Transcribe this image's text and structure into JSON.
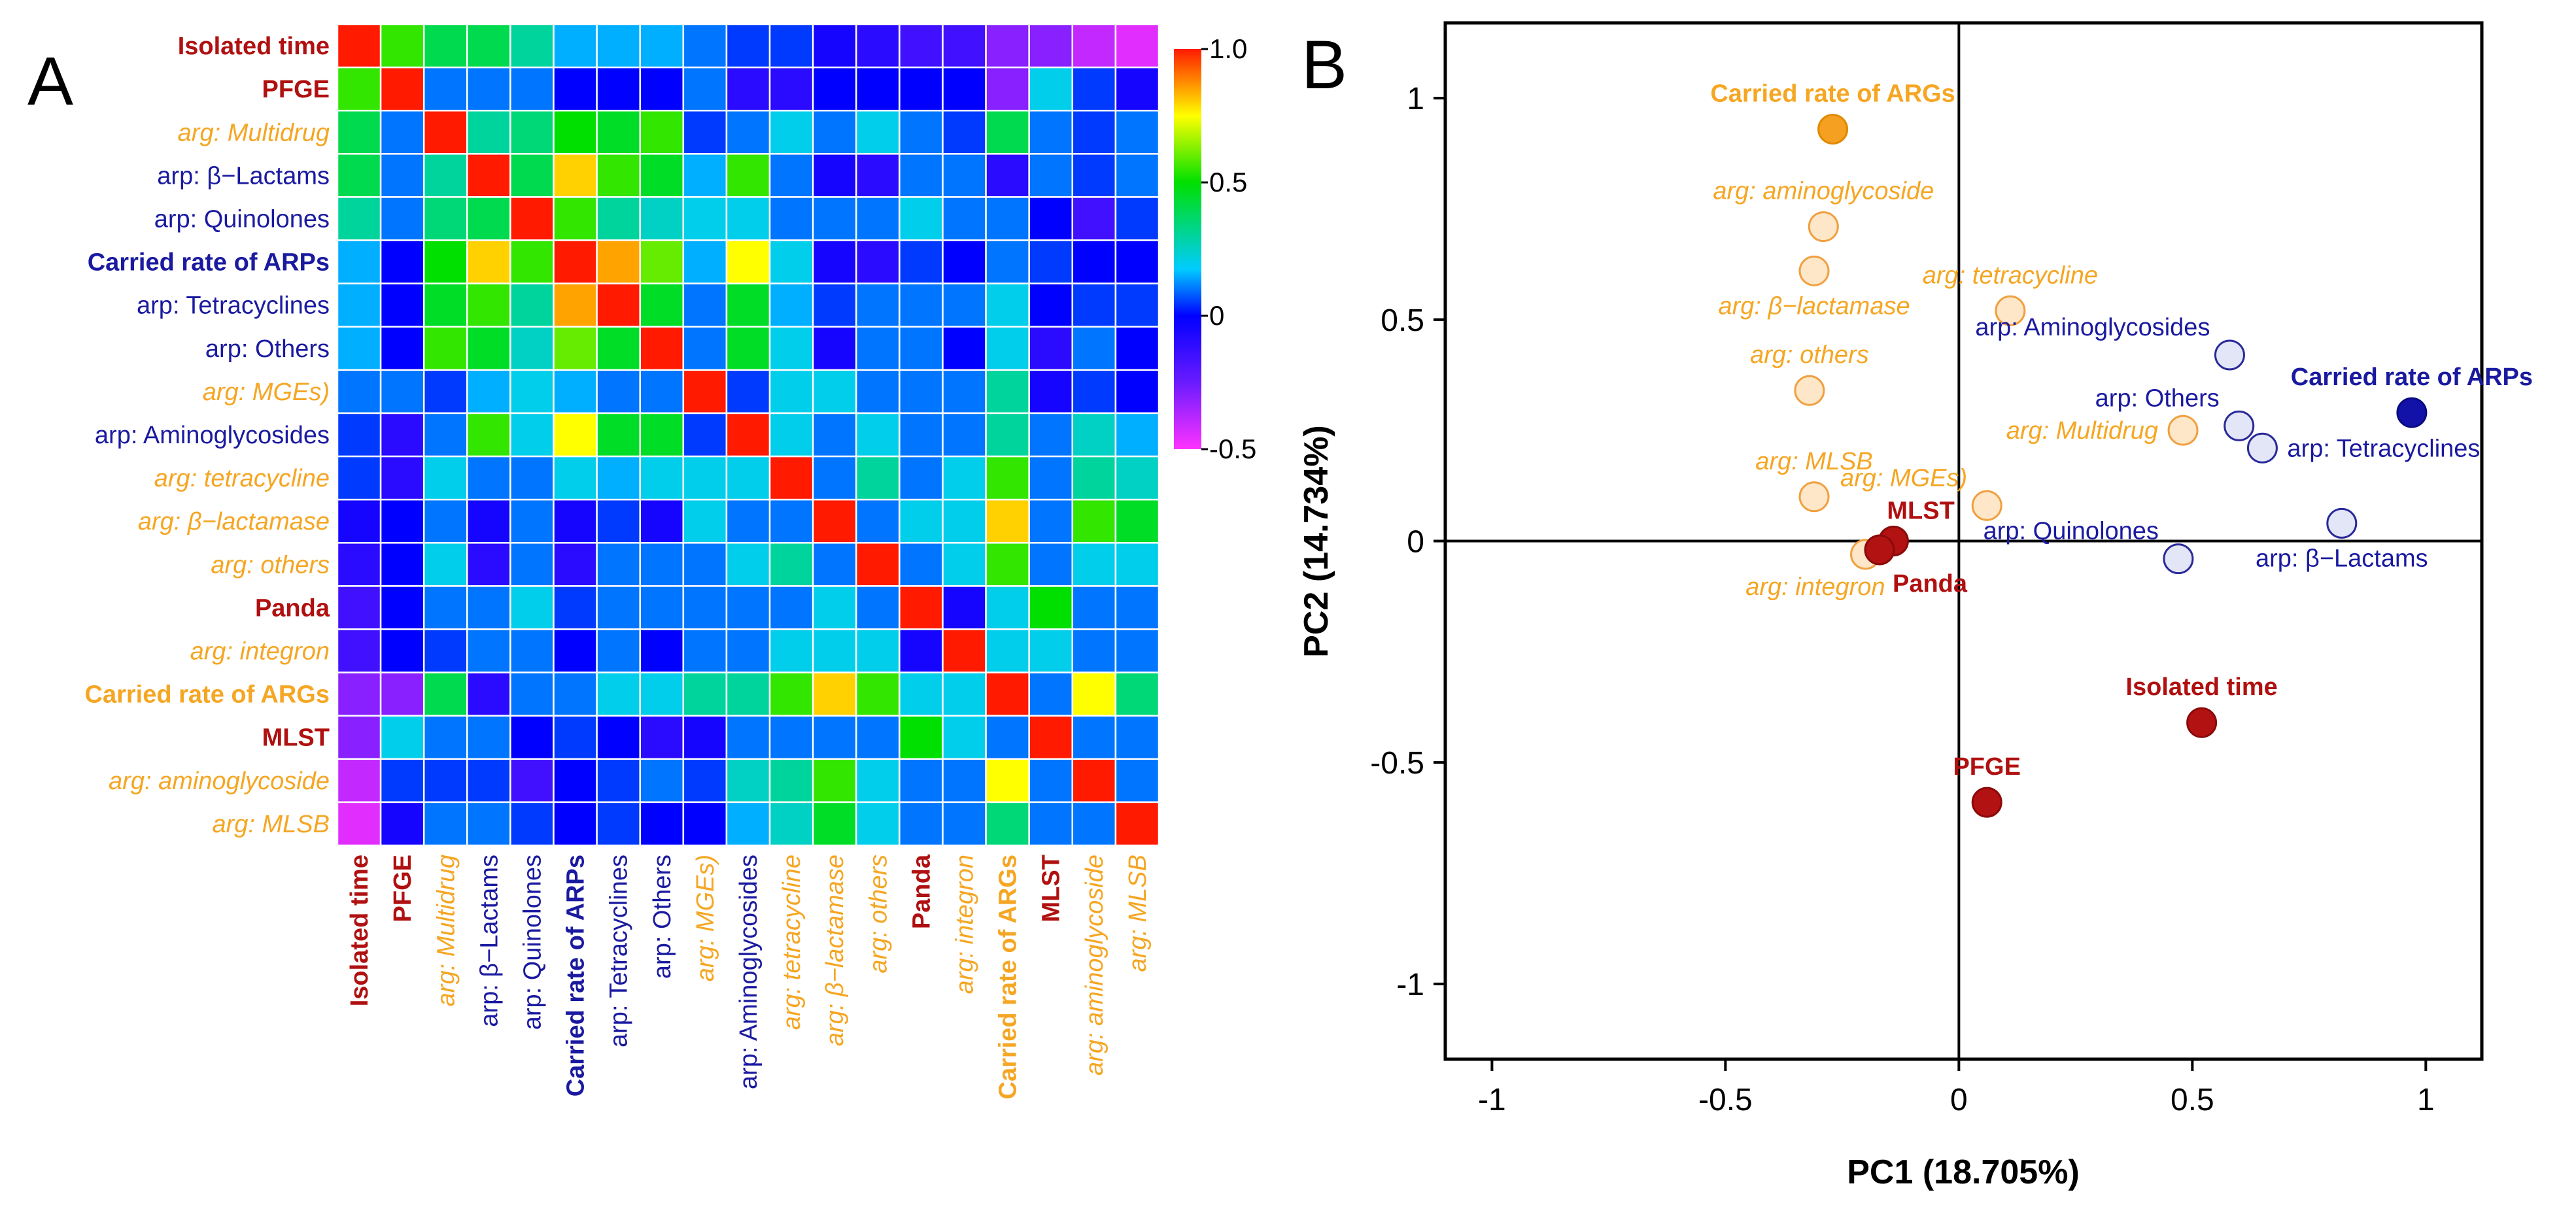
{
  "figure": {
    "panels": [
      {
        "letter": "A"
      },
      {
        "letter": "B"
      }
    ]
  },
  "colors": {
    "red": "#b01010",
    "orange": "#f5a623",
    "blue": "#1a1aa0"
  },
  "chart_data": [
    {
      "type": "heatmap",
      "title": "",
      "variables": [
        {
          "label": "Isolated time",
          "group": "red",
          "bold": true,
          "italic": false
        },
        {
          "label": "PFGE",
          "group": "red",
          "bold": true,
          "italic": false
        },
        {
          "label": "arg: Multidrug",
          "group": "orange",
          "bold": false,
          "italic": true
        },
        {
          "label": "arp: β−Lactams",
          "group": "blue",
          "bold": false,
          "italic": false
        },
        {
          "label": "arp: Quinolones",
          "group": "blue",
          "bold": false,
          "italic": false
        },
        {
          "label": "Carried rate of ARPs",
          "group": "blue",
          "bold": true,
          "italic": false
        },
        {
          "label": "arp: Tetracyclines",
          "group": "blue",
          "bold": false,
          "italic": false
        },
        {
          "label": "arp: Others",
          "group": "blue",
          "bold": false,
          "italic": false
        },
        {
          "label": "arg: MGEs)",
          "group": "orange",
          "bold": false,
          "italic": true
        },
        {
          "label": "arp: Aminoglycosides",
          "group": "blue",
          "bold": false,
          "italic": false
        },
        {
          "label": "arg: tetracycline",
          "group": "orange",
          "bold": false,
          "italic": true
        },
        {
          "label": "arg: β−lactamase",
          "group": "orange",
          "bold": false,
          "italic": true
        },
        {
          "label": "arg: others",
          "group": "orange",
          "bold": false,
          "italic": true
        },
        {
          "label": "Panda",
          "group": "red",
          "bold": true,
          "italic": false
        },
        {
          "label": "arg: integron",
          "group": "orange",
          "bold": false,
          "italic": true
        },
        {
          "label": "Carried rate of ARGs",
          "group": "orange",
          "bold": true,
          "italic": false
        },
        {
          "label": "MLST",
          "group": "red",
          "bold": true,
          "italic": false
        },
        {
          "label": "arg: aminoglycoside",
          "group": "orange",
          "bold": false,
          "italic": true
        },
        {
          "label": "arg: MLSB",
          "group": "orange",
          "bold": false,
          "italic": true
        }
      ],
      "matrix": [
        [
          1.0,
          0.55,
          0.4,
          0.4,
          0.3,
          0.15,
          0.15,
          0.15,
          0.1,
          0.05,
          0.05,
          -0.05,
          -0.1,
          -0.15,
          -0.15,
          -0.3,
          -0.3,
          -0.4,
          -0.45
        ],
        [
          0.55,
          1.0,
          0.1,
          0.1,
          0.1,
          0.0,
          0.0,
          0.0,
          0.1,
          -0.1,
          -0.1,
          0.0,
          0.0,
          0.0,
          0.0,
          -0.3,
          0.2,
          0.05,
          -0.05
        ],
        [
          0.4,
          0.1,
          1.0,
          0.3,
          0.35,
          0.5,
          0.45,
          0.55,
          0.05,
          0.1,
          0.2,
          0.1,
          0.2,
          0.1,
          0.05,
          0.4,
          0.1,
          0.05,
          0.1
        ],
        [
          0.4,
          0.1,
          0.3,
          1.0,
          0.4,
          0.8,
          0.55,
          0.45,
          0.15,
          0.55,
          0.1,
          -0.05,
          -0.1,
          0.1,
          0.1,
          -0.1,
          0.1,
          0.05,
          0.1
        ],
        [
          0.3,
          0.1,
          0.35,
          0.4,
          1.0,
          0.55,
          0.3,
          0.25,
          0.2,
          0.2,
          0.1,
          0.1,
          0.1,
          0.2,
          0.1,
          0.1,
          0.0,
          -0.15,
          0.05
        ],
        [
          0.15,
          0.0,
          0.5,
          0.8,
          0.55,
          1.0,
          0.85,
          0.6,
          0.15,
          0.75,
          0.2,
          -0.05,
          -0.1,
          0.05,
          0.0,
          0.1,
          0.05,
          0.0,
          0.0
        ],
        [
          0.15,
          0.0,
          0.45,
          0.55,
          0.3,
          0.85,
          1.0,
          0.45,
          0.1,
          0.45,
          0.15,
          0.05,
          0.1,
          0.1,
          0.1,
          0.2,
          0.0,
          0.05,
          0.05
        ],
        [
          0.15,
          0.0,
          0.55,
          0.45,
          0.25,
          0.6,
          0.45,
          1.0,
          0.1,
          0.45,
          0.2,
          -0.05,
          0.1,
          0.1,
          0.0,
          0.2,
          -0.1,
          0.1,
          0.0
        ],
        [
          0.1,
          0.1,
          0.05,
          0.15,
          0.2,
          0.15,
          0.1,
          0.1,
          1.0,
          0.05,
          0.2,
          0.2,
          0.1,
          0.1,
          0.1,
          0.3,
          -0.05,
          0.05,
          0.0
        ],
        [
          0.05,
          -0.1,
          0.1,
          0.55,
          0.2,
          0.75,
          0.45,
          0.45,
          0.05,
          1.0,
          0.2,
          0.1,
          0.2,
          0.1,
          0.1,
          0.3,
          0.1,
          0.25,
          0.15
        ],
        [
          0.05,
          -0.1,
          0.2,
          0.1,
          0.1,
          0.2,
          0.15,
          0.2,
          0.2,
          0.2,
          1.0,
          0.1,
          0.3,
          0.1,
          0.2,
          0.55,
          0.1,
          0.3,
          0.25
        ],
        [
          -0.05,
          0.0,
          0.1,
          -0.05,
          0.1,
          -0.05,
          0.05,
          -0.05,
          0.2,
          0.1,
          0.1,
          1.0,
          0.1,
          0.2,
          0.2,
          0.8,
          0.1,
          0.55,
          0.45
        ],
        [
          -0.1,
          0.0,
          0.2,
          -0.1,
          0.1,
          -0.1,
          0.1,
          0.1,
          0.1,
          0.2,
          0.3,
          0.1,
          1.0,
          0.1,
          0.2,
          0.55,
          0.1,
          0.2,
          0.2
        ],
        [
          -0.15,
          0.0,
          0.1,
          0.1,
          0.2,
          0.05,
          0.1,
          0.1,
          0.1,
          0.1,
          0.1,
          0.2,
          0.1,
          1.0,
          -0.05,
          0.2,
          0.5,
          0.1,
          0.1
        ],
        [
          -0.15,
          0.0,
          0.05,
          0.1,
          0.1,
          0.0,
          0.1,
          0.0,
          0.1,
          0.1,
          0.2,
          0.2,
          0.2,
          -0.05,
          1.0,
          0.2,
          0.2,
          0.1,
          0.1
        ],
        [
          -0.3,
          -0.3,
          0.4,
          -0.1,
          0.1,
          0.1,
          0.2,
          0.2,
          0.3,
          0.3,
          0.55,
          0.8,
          0.55,
          0.2,
          0.2,
          1.0,
          0.1,
          0.75,
          0.35
        ],
        [
          -0.3,
          0.2,
          0.1,
          0.1,
          0.0,
          0.05,
          0.0,
          -0.1,
          -0.05,
          0.1,
          0.1,
          0.1,
          0.1,
          0.5,
          0.2,
          0.1,
          1.0,
          0.1,
          0.1
        ],
        [
          -0.4,
          0.05,
          0.05,
          0.05,
          -0.15,
          0.0,
          0.05,
          0.1,
          0.05,
          0.25,
          0.3,
          0.55,
          0.2,
          0.1,
          0.1,
          0.75,
          0.1,
          1.0,
          0.1
        ],
        [
          -0.45,
          -0.05,
          0.1,
          0.1,
          0.05,
          0.0,
          0.05,
          0.0,
          0.0,
          0.15,
          0.25,
          0.45,
          0.2,
          0.1,
          0.1,
          0.35,
          0.1,
          0.1,
          1.0
        ]
      ],
      "colorbar": {
        "range": [
          -0.5,
          1.0
        ],
        "ticks": [
          {
            "value": 1.0,
            "label": "1.0"
          },
          {
            "value": 0.5,
            "label": "0.5"
          },
          {
            "value": 0.0,
            "label": "0"
          },
          {
            "value": -0.5,
            "label": "-0.5"
          }
        ]
      }
    },
    {
      "type": "scatter",
      "title": "",
      "xlabel": "PC1 (18.705%)",
      "ylabel": "PC2 (14.734%)",
      "xlim": [
        -1.1,
        1.12
      ],
      "ylim": [
        -1.17,
        1.17
      ],
      "xticks": [
        {
          "value": -1,
          "label": "-1"
        },
        {
          "value": -0.5,
          "label": "-0.5"
        },
        {
          "value": 0,
          "label": "0"
        },
        {
          "value": 0.5,
          "label": "0.5"
        },
        {
          "value": 1,
          "label": "1"
        }
      ],
      "yticks": [
        {
          "value": 1,
          "label": "1"
        },
        {
          "value": 0.5,
          "label": "0.5"
        },
        {
          "value": 0,
          "label": "0"
        },
        {
          "value": -0.5,
          "label": "-0.5"
        },
        {
          "value": -1,
          "label": "-1"
        }
      ],
      "points": [
        {
          "label": "Carried rate of ARGs",
          "x": -0.27,
          "y": 0.93,
          "style": "orange-strong",
          "anchor": "above"
        },
        {
          "label": "arg: aminoglycoside",
          "x": -0.29,
          "y": 0.71,
          "style": "orange-light",
          "anchor": "above"
        },
        {
          "label": "arg: β−lactamase",
          "x": -0.31,
          "y": 0.61,
          "style": "orange-light",
          "anchor": "below"
        },
        {
          "label": "arg: tetracycline",
          "x": 0.11,
          "y": 0.52,
          "style": "orange-light",
          "anchor": "above"
        },
        {
          "label": "arg: others",
          "x": -0.32,
          "y": 0.34,
          "style": "orange-light",
          "anchor": "above"
        },
        {
          "label": "arg: Multidrug",
          "x": 0.48,
          "y": 0.25,
          "style": "orange-light",
          "anchor": "left"
        },
        {
          "label": "arg: MLSB",
          "x": -0.31,
          "y": 0.1,
          "style": "orange-light",
          "anchor": "above"
        },
        {
          "label": "arg: MGEs)",
          "x": 0.06,
          "y": 0.08,
          "style": "orange-light",
          "anchor": "aboveleft"
        },
        {
          "label": "arg: integron",
          "x": -0.2,
          "y": -0.03,
          "style": "orange-light",
          "anchor": "belowleft"
        },
        {
          "label": "MLST",
          "x": -0.14,
          "y": 0.0,
          "style": "red",
          "anchor": "aboveright"
        },
        {
          "label": "Panda",
          "x": -0.17,
          "y": -0.02,
          "style": "red",
          "anchor": "belowright"
        },
        {
          "label": "Isolated time",
          "x": 0.52,
          "y": -0.41,
          "style": "red",
          "anchor": "above"
        },
        {
          "label": "PFGE",
          "x": 0.06,
          "y": -0.59,
          "style": "red",
          "anchor": "above"
        },
        {
          "label": "arp: Aminoglycosides",
          "x": 0.58,
          "y": 0.42,
          "style": "blue-light",
          "anchor": "aboveleft"
        },
        {
          "label": "Carried rate of ARPs",
          "x": 0.97,
          "y": 0.29,
          "style": "blue-strong",
          "anchor": "above"
        },
        {
          "label": "arp: Others",
          "x": 0.6,
          "y": 0.26,
          "style": "blue-light",
          "anchor": "aboveleft"
        },
        {
          "label": "arp: Tetracyclines",
          "x": 0.65,
          "y": 0.21,
          "style": "blue-light",
          "anchor": "right"
        },
        {
          "label": "arp: Quinolones",
          "x": 0.47,
          "y": -0.04,
          "style": "blue-light",
          "anchor": "aboveleft"
        },
        {
          "label": "arp: β−Lactams",
          "x": 0.82,
          "y": 0.04,
          "style": "blue-light",
          "anchor": "below"
        }
      ]
    }
  ]
}
